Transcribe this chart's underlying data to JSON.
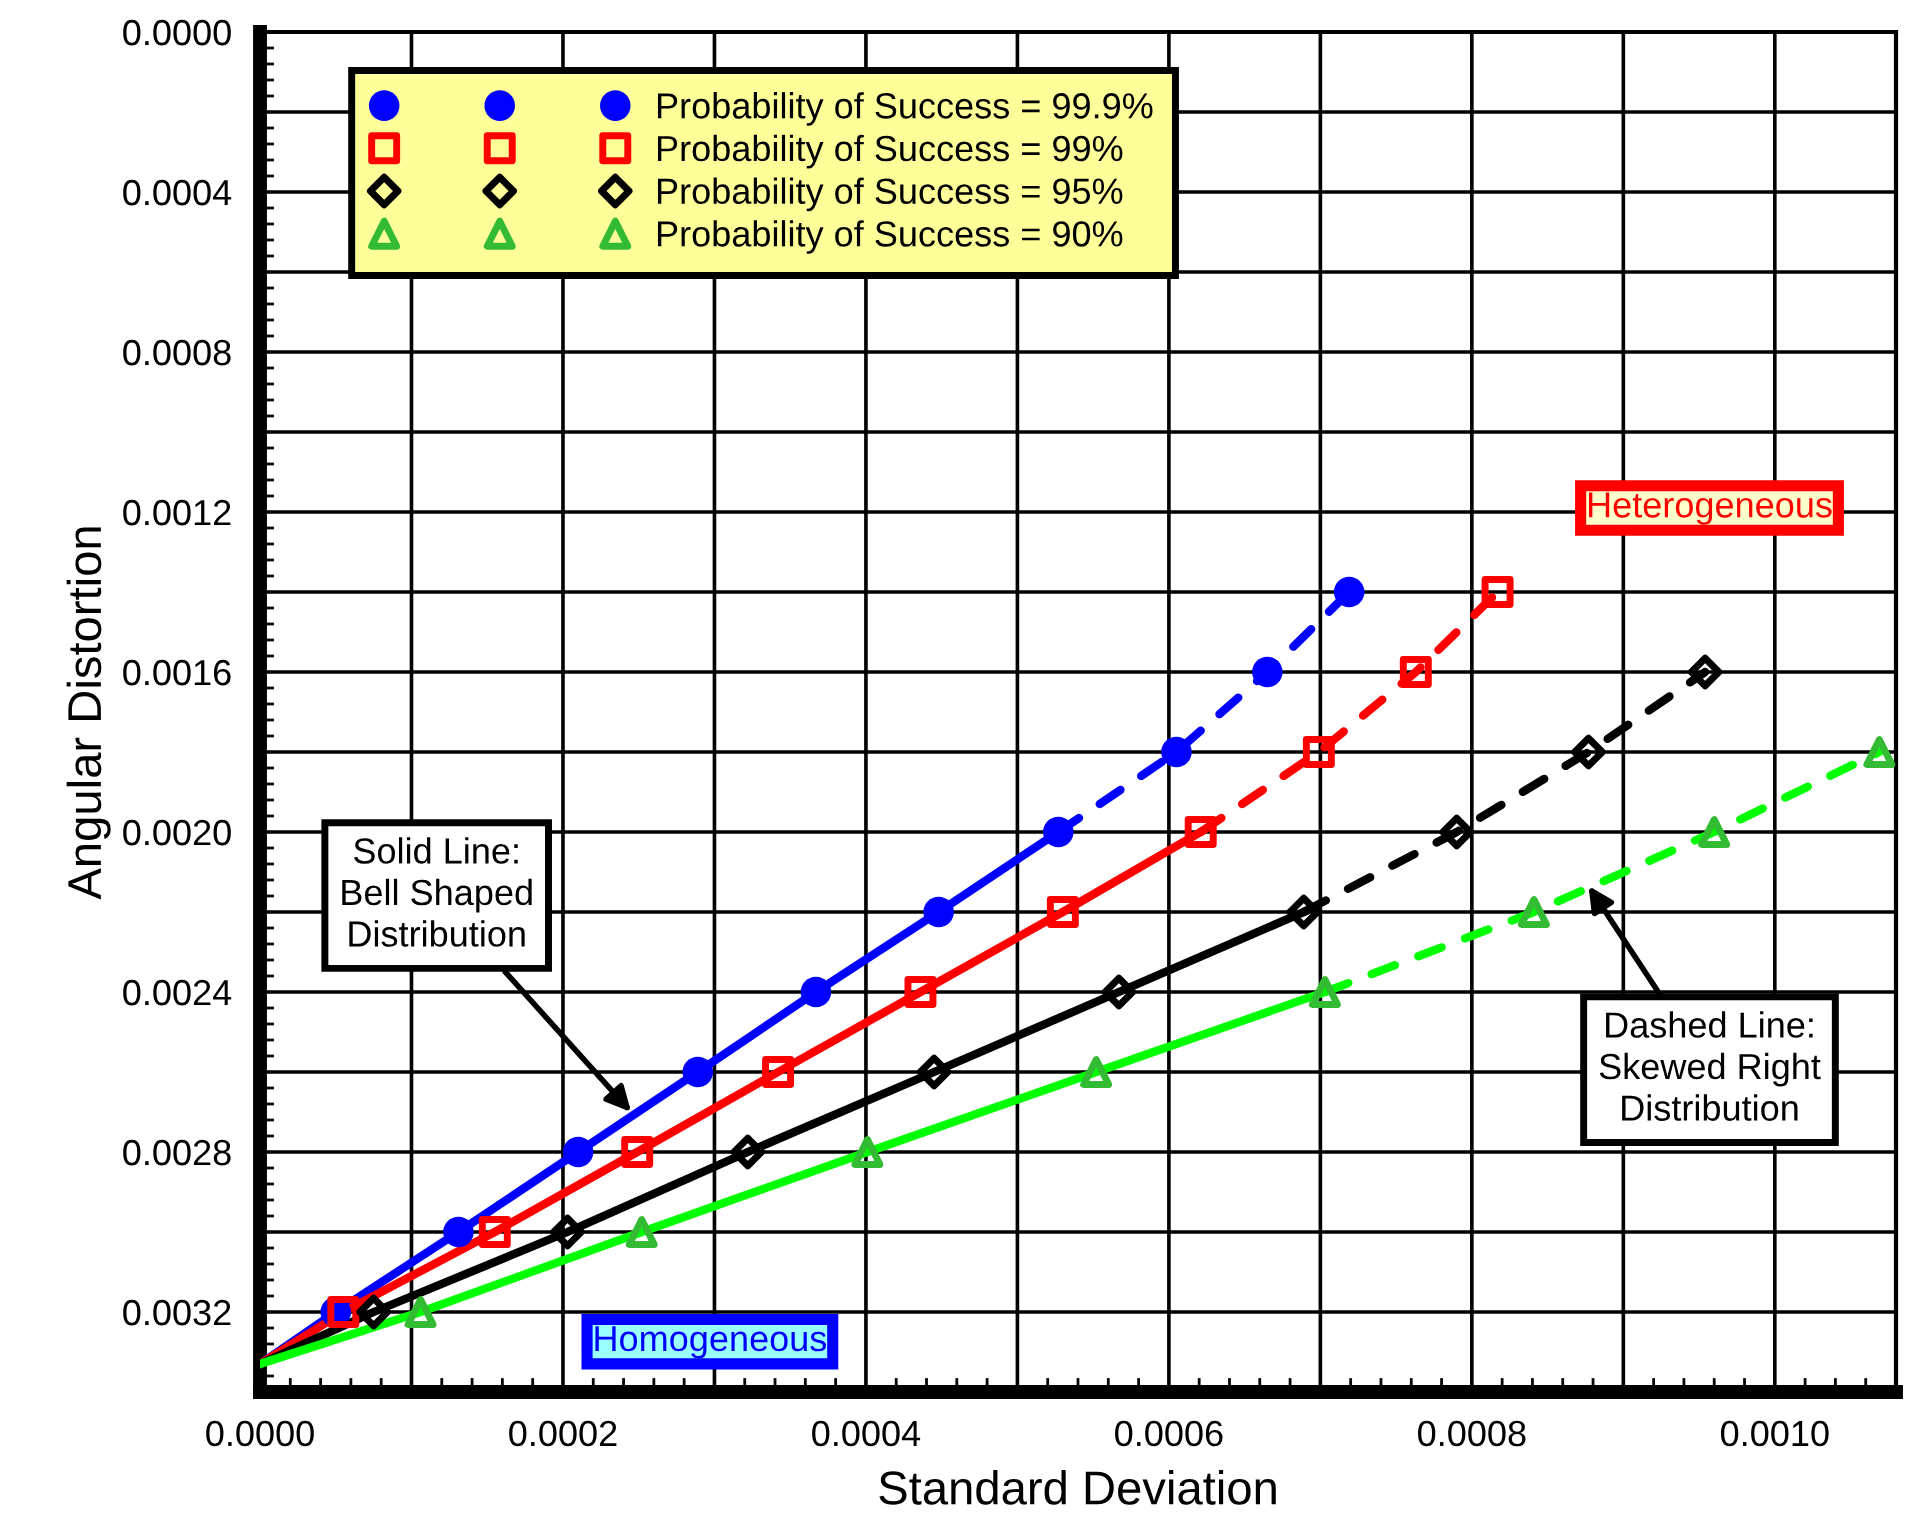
{
  "chart_data": {
    "type": "line",
    "xlabel": "Standard Deviation",
    "ylabel": "Angular Distortion",
    "xlim": [
      0,
      0.00108
    ],
    "ylim": [
      0.0034,
      0
    ],
    "xticks": [
      {
        "value": 0,
        "label": "0.0000"
      },
      {
        "value": 0.0001,
        "label": null
      },
      {
        "value": 0.0002,
        "label": "0.0002"
      },
      {
        "value": 0.0003,
        "label": null
      },
      {
        "value": 0.0004,
        "label": "0.0004"
      },
      {
        "value": 0.0005,
        "label": null
      },
      {
        "value": 0.0006,
        "label": "0.0006"
      },
      {
        "value": 0.0007,
        "label": null
      },
      {
        "value": 0.0008,
        "label": "0.0008"
      },
      {
        "value": 0.0009,
        "label": null
      },
      {
        "value": 0.001,
        "label": "0.0010"
      }
    ],
    "yticks": [
      {
        "value": 0,
        "label": "0.0000"
      },
      {
        "value": 0.0002,
        "label": null
      },
      {
        "value": 0.0004,
        "label": "0.0004"
      },
      {
        "value": 0.0006,
        "label": null
      },
      {
        "value": 0.0008,
        "label": "0.0008"
      },
      {
        "value": 0.001,
        "label": null
      },
      {
        "value": 0.0012,
        "label": "0.0012"
      },
      {
        "value": 0.0014,
        "label": null
      },
      {
        "value": 0.0016,
        "label": "0.0016"
      },
      {
        "value": 0.0018,
        "label": null
      },
      {
        "value": 0.002,
        "label": "0.0020"
      },
      {
        "value": 0.0022,
        "label": null
      },
      {
        "value": 0.0024,
        "label": "0.0024"
      },
      {
        "value": 0.0026,
        "label": null
      },
      {
        "value": 0.0028,
        "label": "0.0028"
      },
      {
        "value": 0.003,
        "label": null
      },
      {
        "value": 0.0032,
        "label": "0.0032"
      }
    ],
    "grid": true,
    "legend": "top left",
    "series": [
      {
        "color": "#0000ff",
        "line_style": "solid",
        "marker": "none",
        "x": [
          0,
          5e-05,
          0.000131,
          0.00021,
          0.000289,
          0.000367,
          0.000448,
          0.000527
        ],
        "values": [
          0.00333,
          0.0032,
          0.003,
          0.0028,
          0.0026,
          0.0024,
          0.0022,
          0.002
        ]
      },
      {
        "color": "#0000ff",
        "line_style": "dashed",
        "marker": "none",
        "x": [
          0.000527,
          0.000605,
          0.000665,
          0.000719
        ],
        "values": [
          0.002,
          0.0018,
          0.0016,
          0.0014
        ]
      },
      {
        "type": "scatter",
        "name": "Probability of Success = 99.9%",
        "color": "#0000ff",
        "marker": "circle",
        "x": [
          5e-05,
          0.000131,
          0.00021,
          0.000289,
          0.000367,
          0.000448,
          0.000527,
          0.000605,
          0.000665,
          0.000719
        ],
        "values": [
          0.0032,
          0.003,
          0.0028,
          0.0026,
          0.0024,
          0.0022,
          0.002,
          0.0018,
          0.0016,
          0.0014
        ]
      },
      {
        "color": "#ff0000",
        "line_style": "solid",
        "marker": "none",
        "x": [
          0,
          5.5e-05,
          0.000155,
          0.000249,
          0.000342,
          0.000436,
          0.00053,
          0.000621
        ],
        "values": [
          0.00333,
          0.0032,
          0.003,
          0.0028,
          0.0026,
          0.0024,
          0.0022,
          0.002
        ]
      },
      {
        "color": "#ff0000",
        "line_style": "dashed",
        "marker": "none",
        "x": [
          0.000621,
          0.000699,
          0.000763,
          0.000817
        ],
        "values": [
          0.002,
          0.0018,
          0.0016,
          0.0014
        ]
      },
      {
        "type": "scatter",
        "name": "Probability of Success = 99%",
        "color": "#ff0000",
        "marker": "square",
        "x": [
          5.5e-05,
          0.000155,
          0.000249,
          0.000342,
          0.000436,
          0.00053,
          0.000621,
          0.000699,
          0.000763,
          0.000817
        ],
        "values": [
          0.0032,
          0.003,
          0.0028,
          0.0026,
          0.0024,
          0.0022,
          0.002,
          0.0018,
          0.0016,
          0.0014
        ]
      },
      {
        "color": "#000000",
        "line_style": "solid",
        "marker": "none",
        "x": [
          0,
          7.5e-05,
          0.000203,
          0.000322,
          0.000445,
          0.000567,
          0.000689
        ],
        "values": [
          0.00333,
          0.0032,
          0.003,
          0.0028,
          0.0026,
          0.0024,
          0.0022
        ]
      },
      {
        "color": "#000000",
        "line_style": "dashed",
        "marker": "none",
        "x": [
          0.000689,
          0.00079,
          0.000877,
          0.000954
        ],
        "values": [
          0.0022,
          0.002,
          0.0018,
          0.0016
        ]
      },
      {
        "type": "scatter",
        "name": "Probability of Success = 95%",
        "color": "#000000",
        "marker": "diamond",
        "x": [
          7.5e-05,
          0.000203,
          0.000322,
          0.000445,
          0.000567,
          0.000689,
          0.00079,
          0.000877,
          0.000954
        ],
        "values": [
          0.0032,
          0.003,
          0.0028,
          0.0026,
          0.0024,
          0.0022,
          0.002,
          0.0018,
          0.0016
        ]
      },
      {
        "color": "#00ff00",
        "line_style": "solid",
        "marker": "none",
        "x": [
          0,
          0.000106,
          0.000252,
          0.000401,
          0.000552,
          0.000703
        ],
        "values": [
          0.00333,
          0.0032,
          0.003,
          0.0028,
          0.0026,
          0.0024
        ]
      },
      {
        "color": "#00ff00",
        "line_style": "dashed",
        "marker": "none",
        "x": [
          0.000703,
          0.000841,
          0.00096,
          0.001069
        ],
        "values": [
          0.0024,
          0.0022,
          0.002,
          0.0018
        ]
      },
      {
        "type": "scatter",
        "name": "Probability of Success = 90%",
        "color": "#33bb33",
        "marker": "triangle",
        "x": [
          0.000106,
          0.000252,
          0.000401,
          0.000552,
          0.000703,
          0.000841,
          0.00096,
          0.001069
        ],
        "values": [
          0.0032,
          0.003,
          0.0028,
          0.0026,
          0.0024,
          0.0022,
          0.002,
          0.0018
        ]
      }
    ],
    "annotations": [
      "Heterogeneous",
      "Homogeneous",
      {
        "text": "Solid Line:\nBell Shaped\nDistribution",
        "x": 0.000245,
        "y": 0.0027
      },
      {
        "text": "Dashed Line:\nSkewed Right\nDistribution",
        "x": 0.000877,
        "y": 0.002135
      }
    ]
  }
}
